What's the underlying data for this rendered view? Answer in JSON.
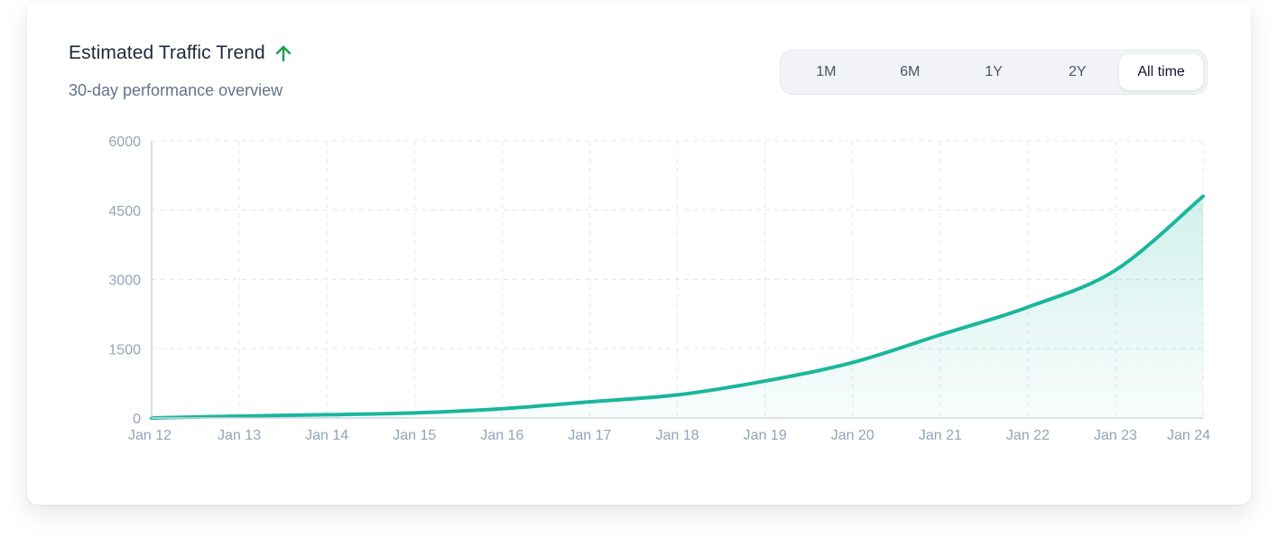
{
  "header": {
    "title": "Estimated Traffic Trend",
    "subtitle": "30-day performance overview",
    "trend_icon": "arrow-up-icon"
  },
  "range_selector": {
    "options": [
      "1M",
      "6M",
      "1Y",
      "2Y",
      "All time"
    ],
    "selected": "All time"
  },
  "colors": {
    "line": "#1ab69d",
    "trend_icon": "#16a34a",
    "grid": "#e2e8f0",
    "axis": "#cbd5e1"
  },
  "chart_data": {
    "type": "area",
    "title": "",
    "xlabel": "",
    "ylabel": "",
    "categories": [
      "Jan 12",
      "Jan 13",
      "Jan 14",
      "Jan 15",
      "Jan 16",
      "Jan 17",
      "Jan 18",
      "Jan 19",
      "Jan 20",
      "Jan 21",
      "Jan 22",
      "Jan 23",
      "Jan 24"
    ],
    "series": [
      {
        "values": [
          0,
          40,
          70,
          110,
          200,
          350,
          500,
          800,
          1200,
          1800,
          2400,
          3200,
          4800
        ]
      }
    ],
    "yticks": [
      "0",
      "1500",
      "3000",
      "4500",
      "6000"
    ],
    "ylim": [
      0,
      6000
    ],
    "grid": true,
    "legend": "none"
  }
}
